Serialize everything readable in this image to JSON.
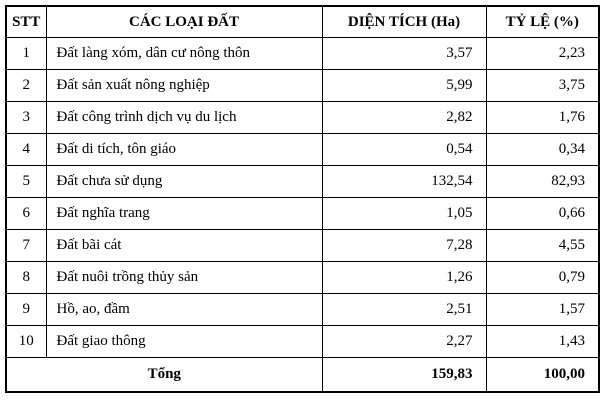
{
  "colors": {
    "border": "#000000",
    "background": "#ffffff",
    "text": "#000000"
  },
  "table": {
    "headers": {
      "stt": "STT",
      "name": "CÁC LOẠI ĐẤT",
      "area": "DIỆN TÍCH (Ha)",
      "ratio": "TỶ LỆ (%)"
    },
    "rows": [
      {
        "stt": "1",
        "name": "Đất làng xóm, dân cư nông thôn",
        "area": "3,57",
        "ratio": "2,23"
      },
      {
        "stt": "2",
        "name": "Đất sản xuất nông nghiệp",
        "area": "5,99",
        "ratio": "3,75"
      },
      {
        "stt": "3",
        "name": "Đất công trình dịch vụ du lịch",
        "area": "2,82",
        "ratio": "1,76"
      },
      {
        "stt": "4",
        "name": "Đất di tích, tôn giáo",
        "area": "0,54",
        "ratio": "0,34"
      },
      {
        "stt": "5",
        "name": "Đất chưa sử dụng",
        "area": "132,54",
        "ratio": "82,93"
      },
      {
        "stt": "6",
        "name": "Đất nghĩa trang",
        "area": "1,05",
        "ratio": "0,66"
      },
      {
        "stt": "7",
        "name": "Đất bãi cát",
        "area": "7,28",
        "ratio": "4,55"
      },
      {
        "stt": "8",
        "name": "Đất nuôi trồng thủy sản",
        "area": "1,26",
        "ratio": "0,79"
      },
      {
        "stt": "9",
        "name": "Hồ, ao, đầm",
        "area": "2,51",
        "ratio": "1,57"
      },
      {
        "stt": "10",
        "name": "Đất giao thông",
        "area": "2,27",
        "ratio": "1,43"
      }
    ],
    "total": {
      "label": "Tổng",
      "area": "159,83",
      "ratio": "100,00"
    }
  }
}
